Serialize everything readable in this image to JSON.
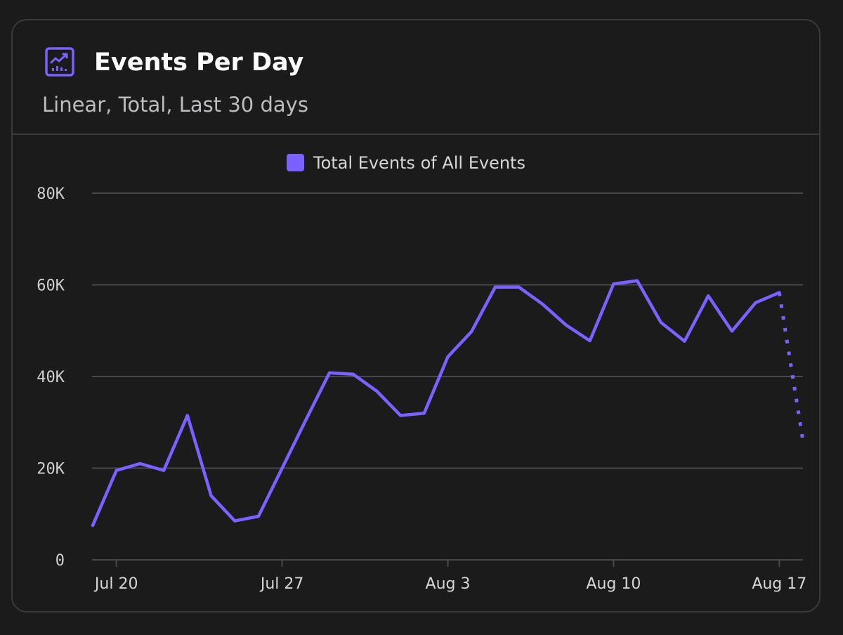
{
  "header": {
    "title": "Events Per Day",
    "subtitle": "Linear, Total, Last 30 days",
    "icon": "line-chart-icon"
  },
  "colors": {
    "accent": "#7b61ff",
    "grid": "#48484b",
    "background": "#1b1b1c"
  },
  "chart_data": {
    "type": "line",
    "title": "Events Per Day",
    "subtitle": "Linear, Total, Last 30 days",
    "legend_position": "top-center",
    "grid": true,
    "ylim": [
      0,
      80000
    ],
    "y_ticks": [
      {
        "value": 0,
        "label": "0"
      },
      {
        "value": 20000,
        "label": "20K"
      },
      {
        "value": 40000,
        "label": "40K"
      },
      {
        "value": 60000,
        "label": "60K"
      },
      {
        "value": 80000,
        "label": "80K"
      }
    ],
    "x_ticks": [
      {
        "value": "Jul 20",
        "label": "Jul 20"
      },
      {
        "value": "Jul 27",
        "label": "Jul 27"
      },
      {
        "value": "Aug 3",
        "label": "Aug 3"
      },
      {
        "value": "Aug 10",
        "label": "Aug 10"
      },
      {
        "value": "Aug 17",
        "label": "Aug 17"
      }
    ],
    "x": [
      "Jul 19",
      "Jul 20",
      "Jul 21",
      "Jul 22",
      "Jul 23",
      "Jul 24",
      "Jul 25",
      "Jul 26",
      "Jul 27",
      "Jul 28",
      "Jul 29",
      "Jul 30",
      "Jul 31",
      "Aug 1",
      "Aug 2",
      "Aug 3",
      "Aug 4",
      "Aug 5",
      "Aug 6",
      "Aug 7",
      "Aug 8",
      "Aug 9",
      "Aug 10",
      "Aug 11",
      "Aug 12",
      "Aug 13",
      "Aug 14",
      "Aug 15",
      "Aug 16",
      "Aug 17",
      "Aug 18"
    ],
    "series": [
      {
        "name": "Total Events of All Events",
        "color": "#7b61ff",
        "values": [
          7500,
          19500,
          21000,
          19500,
          31500,
          14000,
          8500,
          9500,
          20000,
          30500,
          40800,
          40500,
          36800,
          31500,
          32000,
          44300,
          49800,
          59500,
          59500,
          55800,
          51200,
          47800,
          60200,
          60900,
          51800,
          47700,
          57600,
          49900,
          56100,
          58300,
          26000
        ],
        "partial_from_index": 29
      }
    ]
  }
}
